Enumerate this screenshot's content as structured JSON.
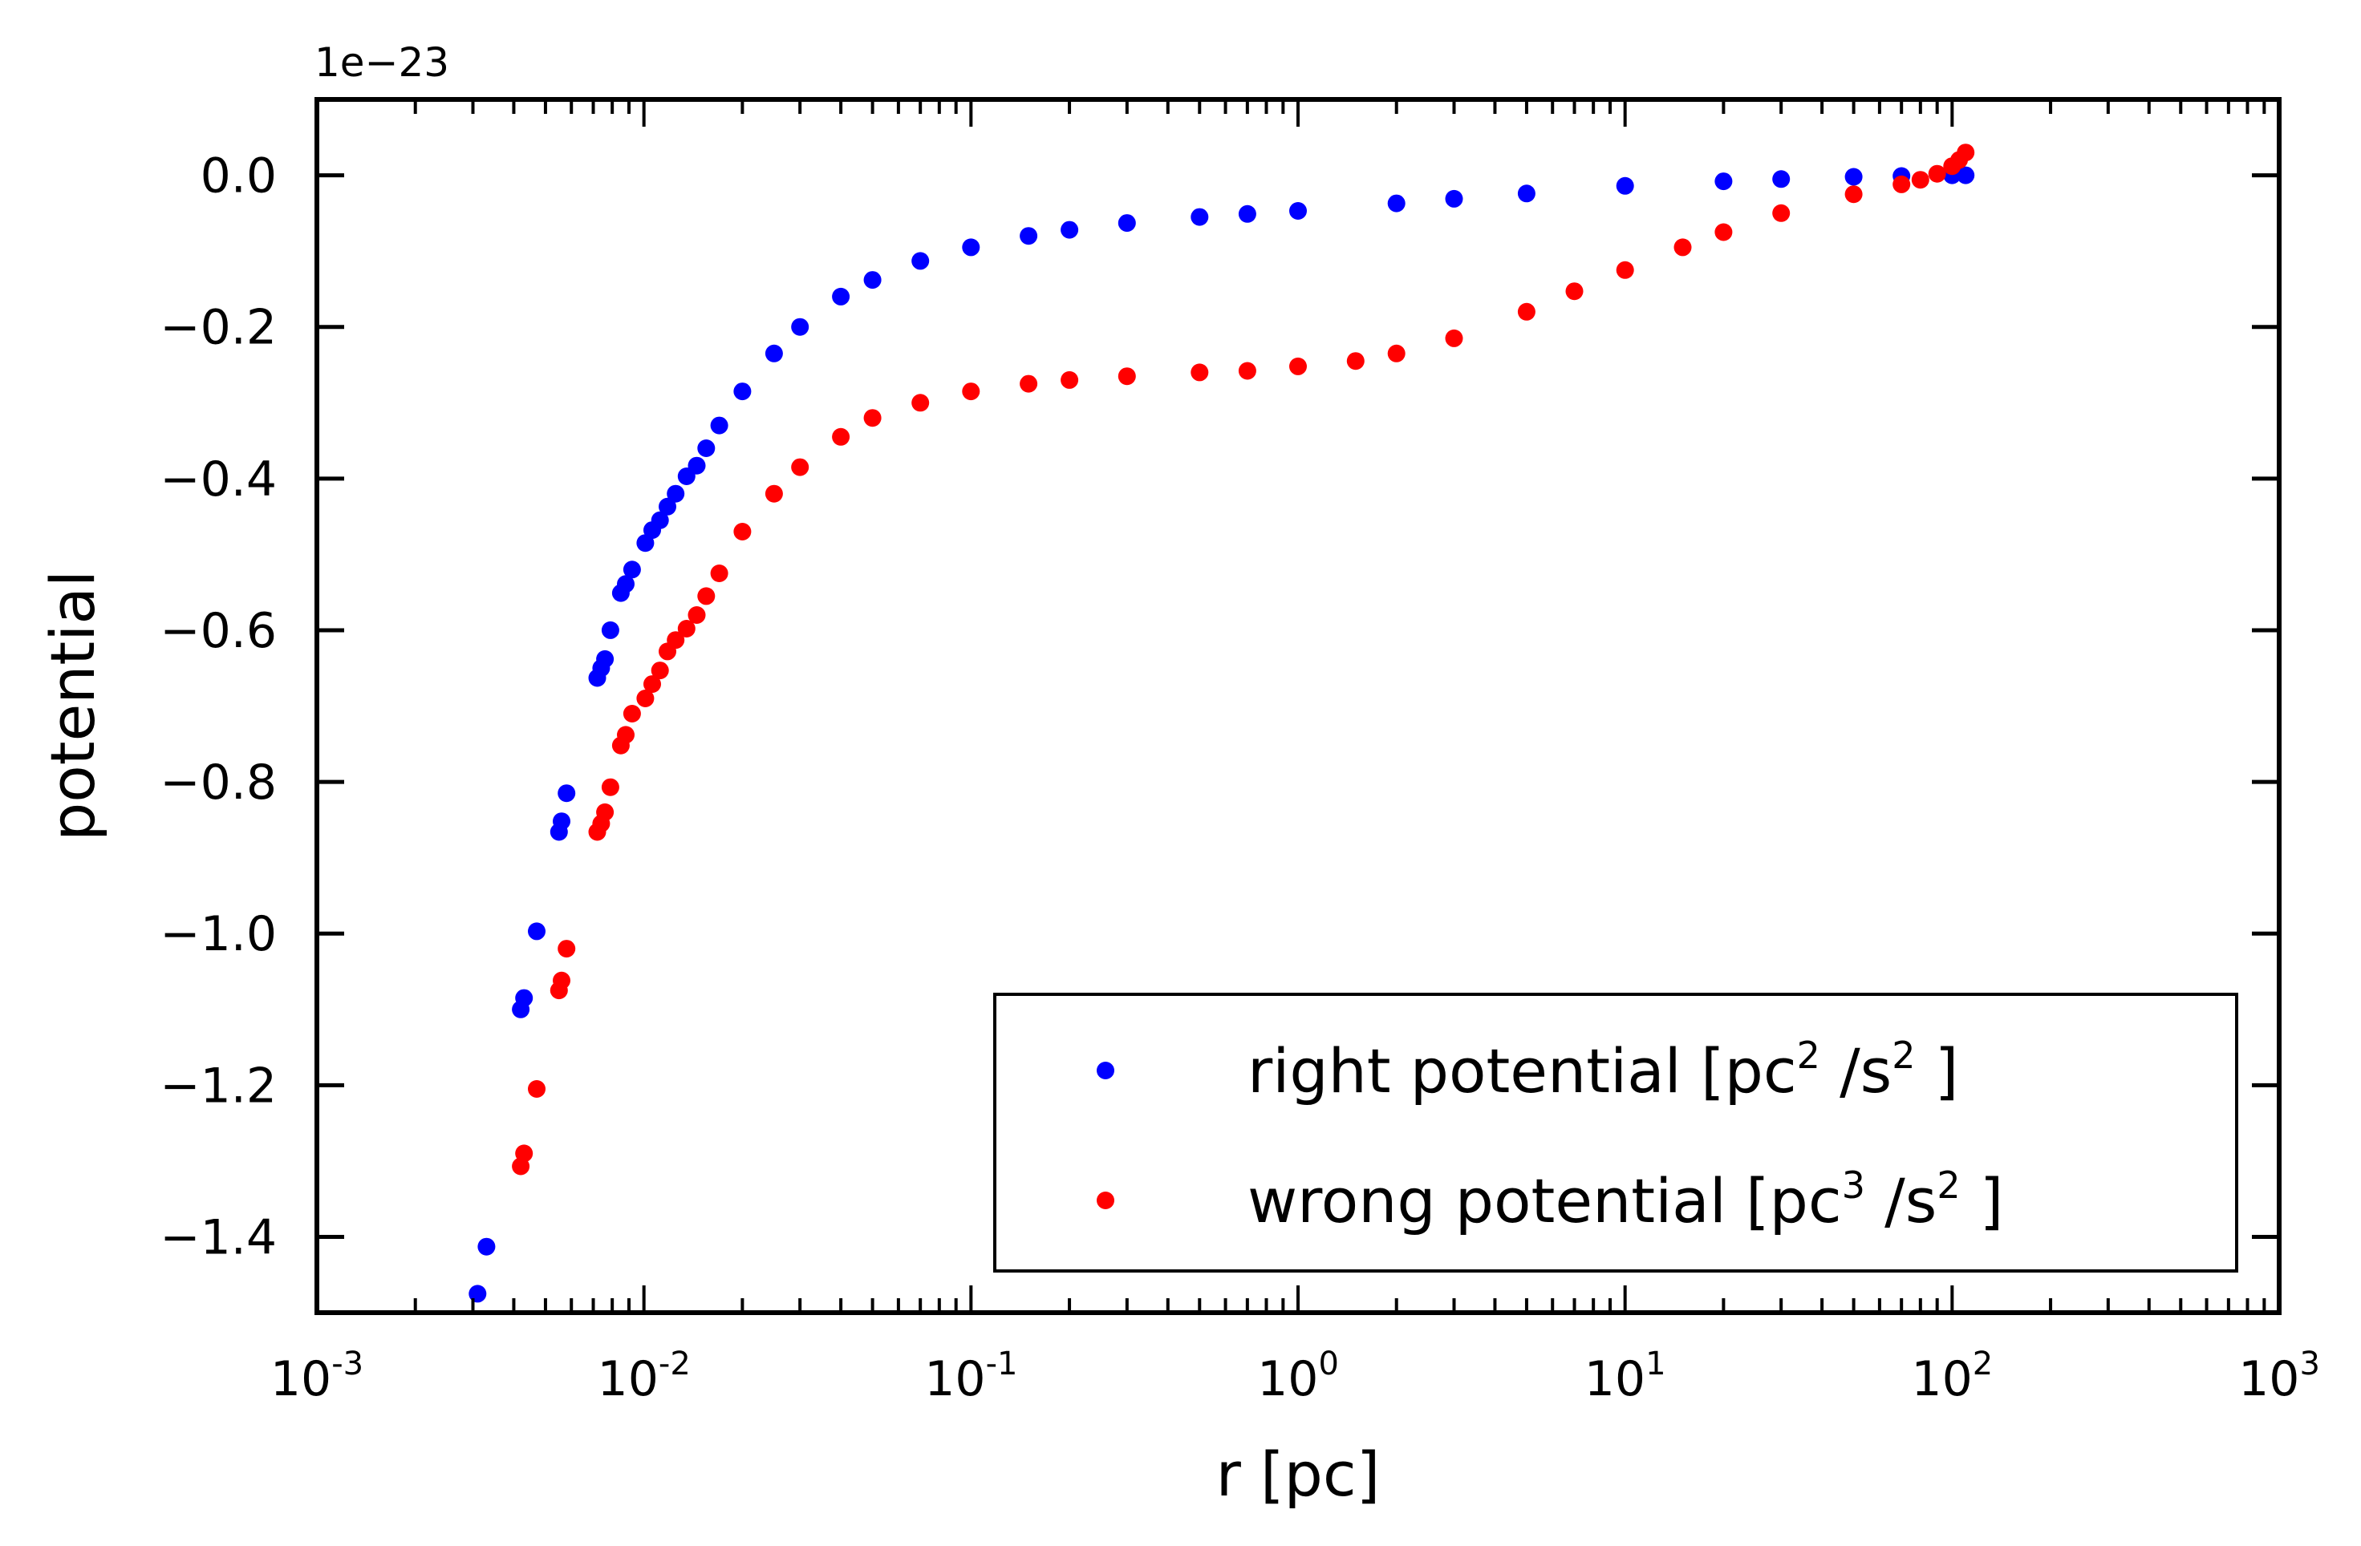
{
  "chart_data": {
    "type": "scatter",
    "xlabel": "r [pc]",
    "ylabel": "potential",
    "offset_text": "1e−23",
    "xscale": "log",
    "xlim": [
      0.001,
      1000
    ],
    "ylim": [
      -1.5,
      0.1
    ],
    "x_ticks": [
      {
        "base": "10",
        "exp": "-3"
      },
      {
        "base": "10",
        "exp": "-2"
      },
      {
        "base": "10",
        "exp": "-1"
      },
      {
        "base": "10",
        "exp": "0"
      },
      {
        "base": "10",
        "exp": "1"
      },
      {
        "base": "10",
        "exp": "2"
      },
      {
        "base": "10",
        "exp": "3"
      }
    ],
    "y_ticks": [
      "0.0",
      "−0.2",
      "−0.4",
      "−0.6",
      "−0.8",
      "−1.0",
      "−1.2",
      "−1.4"
    ],
    "y_tick_values": [
      0.0,
      -0.2,
      -0.4,
      -0.6,
      -0.8,
      -1.0,
      -1.2,
      -1.4
    ],
    "legend_position": "lower right",
    "grid": false,
    "series": [
      {
        "name": "right potential",
        "legend_prefix": "right potential [pc",
        "legend_sup1": "2",
        "legend_mid": " /s",
        "legend_sup2": "2",
        "legend_suffix": " ]",
        "color": "#0000ff",
        "x": [
          0.0031,
          0.0033,
          0.0042,
          0.0043,
          0.0047,
          0.0055,
          0.0056,
          0.0058,
          0.0072,
          0.0074,
          0.0076,
          0.0079,
          0.0085,
          0.0088,
          0.0092,
          0.0101,
          0.0106,
          0.0112,
          0.0118,
          0.0125,
          0.0135,
          0.0145,
          0.0155,
          0.017,
          0.02,
          0.025,
          0.03,
          0.04,
          0.05,
          0.07,
          0.1,
          0.15,
          0.2,
          0.3,
          0.5,
          0.7,
          1,
          2,
          3,
          5,
          10,
          20,
          30,
          50,
          70,
          100,
          110
        ],
        "y": [
          -1.475,
          -1.413,
          -1.1,
          -1.085,
          -0.997,
          -0.866,
          -0.852,
          -0.815,
          -0.663,
          -0.65,
          -0.638,
          -0.6,
          -0.551,
          -0.539,
          -0.52,
          -0.485,
          -0.468,
          -0.455,
          -0.437,
          -0.42,
          -0.397,
          -0.383,
          -0.36,
          -0.33,
          -0.285,
          -0.235,
          -0.2,
          -0.16,
          -0.138,
          -0.113,
          -0.095,
          -0.08,
          -0.072,
          -0.063,
          -0.055,
          -0.051,
          -0.047,
          -0.037,
          -0.031,
          -0.024,
          -0.014,
          -0.008,
          -0.005,
          -0.002,
          -0.001,
          0.0,
          0.0
        ]
      },
      {
        "name": "wrong potential",
        "legend_prefix": "wrong potential [pc",
        "legend_sup1": "3",
        "legend_mid": " /s",
        "legend_sup2": "2",
        "legend_suffix": " ]",
        "color": "#ff0000",
        "x": [
          0.0042,
          0.0043,
          0.0047,
          0.0055,
          0.0056,
          0.0058,
          0.0072,
          0.0074,
          0.0076,
          0.0079,
          0.0085,
          0.0088,
          0.0092,
          0.0101,
          0.0106,
          0.0112,
          0.0118,
          0.0125,
          0.0135,
          0.0145,
          0.0155,
          0.017,
          0.02,
          0.025,
          0.03,
          0.04,
          0.05,
          0.07,
          0.1,
          0.15,
          0.2,
          0.3,
          0.5,
          0.7,
          1,
          1.5,
          2,
          3,
          5,
          7,
          10,
          15,
          20,
          30,
          50,
          70,
          80,
          90,
          100,
          105,
          110
        ],
        "y": [
          -1.307,
          -1.29,
          -1.205,
          -1.075,
          -1.062,
          -1.02,
          -0.866,
          -0.855,
          -0.84,
          -0.807,
          -0.752,
          -0.738,
          -0.71,
          -0.69,
          -0.671,
          -0.653,
          -0.628,
          -0.613,
          -0.598,
          -0.58,
          -0.555,
          -0.525,
          -0.47,
          -0.42,
          -0.385,
          -0.345,
          -0.32,
          -0.3,
          -0.285,
          -0.275,
          -0.27,
          -0.265,
          -0.26,
          -0.258,
          -0.252,
          -0.245,
          -0.235,
          -0.215,
          -0.18,
          -0.153,
          -0.125,
          -0.095,
          -0.075,
          -0.05,
          -0.025,
          -0.012,
          -0.006,
          0.002,
          0.012,
          0.02,
          0.03
        ]
      }
    ]
  }
}
